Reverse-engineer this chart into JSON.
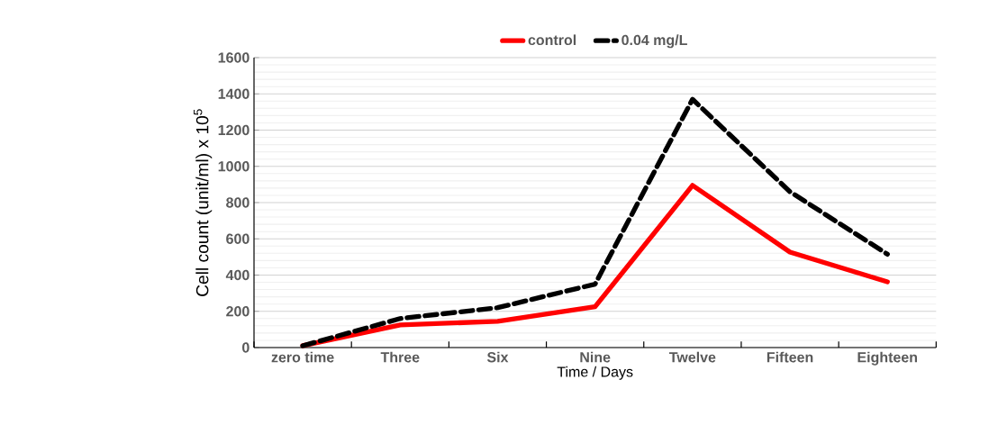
{
  "chart_data": {
    "type": "line",
    "xlabel": "Time / Days",
    "ylabel": "Cell count (unit/ml) x 10$^{5}$",
    "categories": [
      "zero time",
      "Three",
      "Six",
      "Nine",
      "Twelve",
      "Fifteen",
      "Eighteen"
    ],
    "series": [
      {
        "name": "control",
        "color": "#ff0000",
        "line_style": "solid",
        "values": [
          10,
          125,
          145,
          225,
          895,
          527,
          363
        ]
      },
      {
        "name": "0.04 mg/L",
        "color": "#000000",
        "line_style": "dashed",
        "values": [
          10,
          160,
          220,
          350,
          1370,
          860,
          515
        ]
      }
    ],
    "ylim": [
      0,
      1600
    ],
    "yticks": [
      0,
      200,
      400,
      600,
      800,
      1000,
      1200,
      1400,
      1600
    ],
    "grid": "y",
    "legend": "top",
    "marker": "none"
  }
}
